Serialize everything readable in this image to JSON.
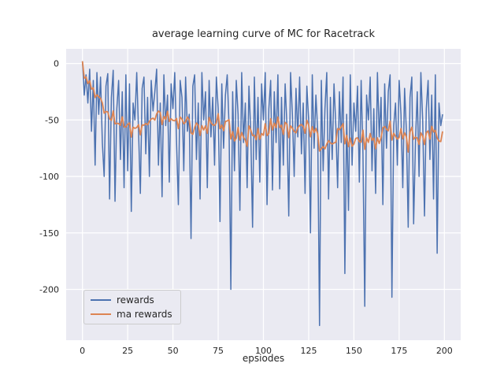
{
  "title": "average learning curve of MC for Racetrack",
  "xlabel": "epsiodes",
  "legend": {
    "rewards_label": "rewards",
    "ma_rewards_label": "ma rewards"
  },
  "colors": {
    "axes_background": "#eaeaf2",
    "grid": "#ffffff",
    "rewards": "#4c72b0",
    "ma_rewards": "#dd8452",
    "text": "#262626"
  },
  "chart_data": {
    "type": "line",
    "title": "average learning curve of MC for Racetrack",
    "xlabel": "epsiodes",
    "ylabel": "",
    "xlim": [
      -9,
      209
    ],
    "ylim": [
      -245,
      13
    ],
    "x_ticks": [
      0,
      25,
      50,
      75,
      100,
      125,
      150,
      175,
      200
    ],
    "y_ticks": [
      0,
      -50,
      -100,
      -150,
      -200
    ],
    "grid": true,
    "legend_position": "lower left",
    "ma_window": 10,
    "series": [
      {
        "name": "rewards",
        "color": "#4c72b0",
        "values": [
          2,
          -28,
          -10,
          -35,
          -5,
          -60,
          -15,
          -90,
          -8,
          -45,
          -12,
          -70,
          -100,
          -20,
          -9,
          -120,
          -30,
          -6,
          -122,
          -40,
          -15,
          -85,
          -25,
          -110,
          -10,
          -95,
          -18,
          -131,
          -35,
          -50,
          -8,
          -60,
          -115,
          -22,
          -12,
          -80,
          -30,
          -100,
          -15,
          -42,
          -25,
          -5,
          -90,
          -35,
          -118,
          -10,
          -55,
          -28,
          -105,
          -18,
          -40,
          -8,
          -70,
          -125,
          -15,
          -30,
          -95,
          -12,
          -60,
          -45,
          -155,
          -20,
          -10,
          -85,
          -35,
          -120,
          -8,
          -50,
          -25,
          -110,
          -15,
          -65,
          -30,
          -90,
          -12,
          -40,
          -140,
          -18,
          -75,
          -28,
          -10,
          -55,
          -200,
          -25,
          -95,
          -15,
          -45,
          -130,
          -8,
          -70,
          -35,
          -110,
          -20,
          -60,
          -145,
          -12,
          -85,
          -30,
          -105,
          -18,
          -50,
          -8,
          -125,
          -40,
          -15,
          -112,
          -25,
          -70,
          -10,
          -111,
          -30,
          -90,
          -18,
          -55,
          -135,
          -8,
          -45,
          -100,
          -22,
          -65,
          -12,
          -80,
          -35,
          -115,
          -20,
          -50,
          -150,
          -10,
          -75,
          -28,
          -60,
          -232,
          -15,
          -95,
          -40,
          -8,
          -120,
          -30,
          -85,
          -18,
          -55,
          -110,
          -25,
          -70,
          -12,
          -186,
          -45,
          -130,
          -10,
          -90,
          -35,
          -60,
          -20,
          -105,
          -15,
          -80,
          -215,
          -28,
          -50,
          -12,
          -95,
          -40,
          -115,
          -8,
          -65,
          -30,
          -125,
          -18,
          -75,
          -25,
          -10,
          -207,
          -55,
          -35,
          -90,
          -15,
          -45,
          -110,
          -22,
          -60,
          -145,
          -30,
          -12,
          -142,
          -70,
          -25,
          -100,
          -8,
          -50,
          -135,
          -40,
          -15,
          -85,
          -28,
          -120,
          -10,
          -168,
          -35,
          -55,
          -45
        ]
      },
      {
        "name": "ma rewards",
        "color": "#dd8452",
        "derived": "moving_average_of_rewards",
        "window": 10
      }
    ]
  }
}
